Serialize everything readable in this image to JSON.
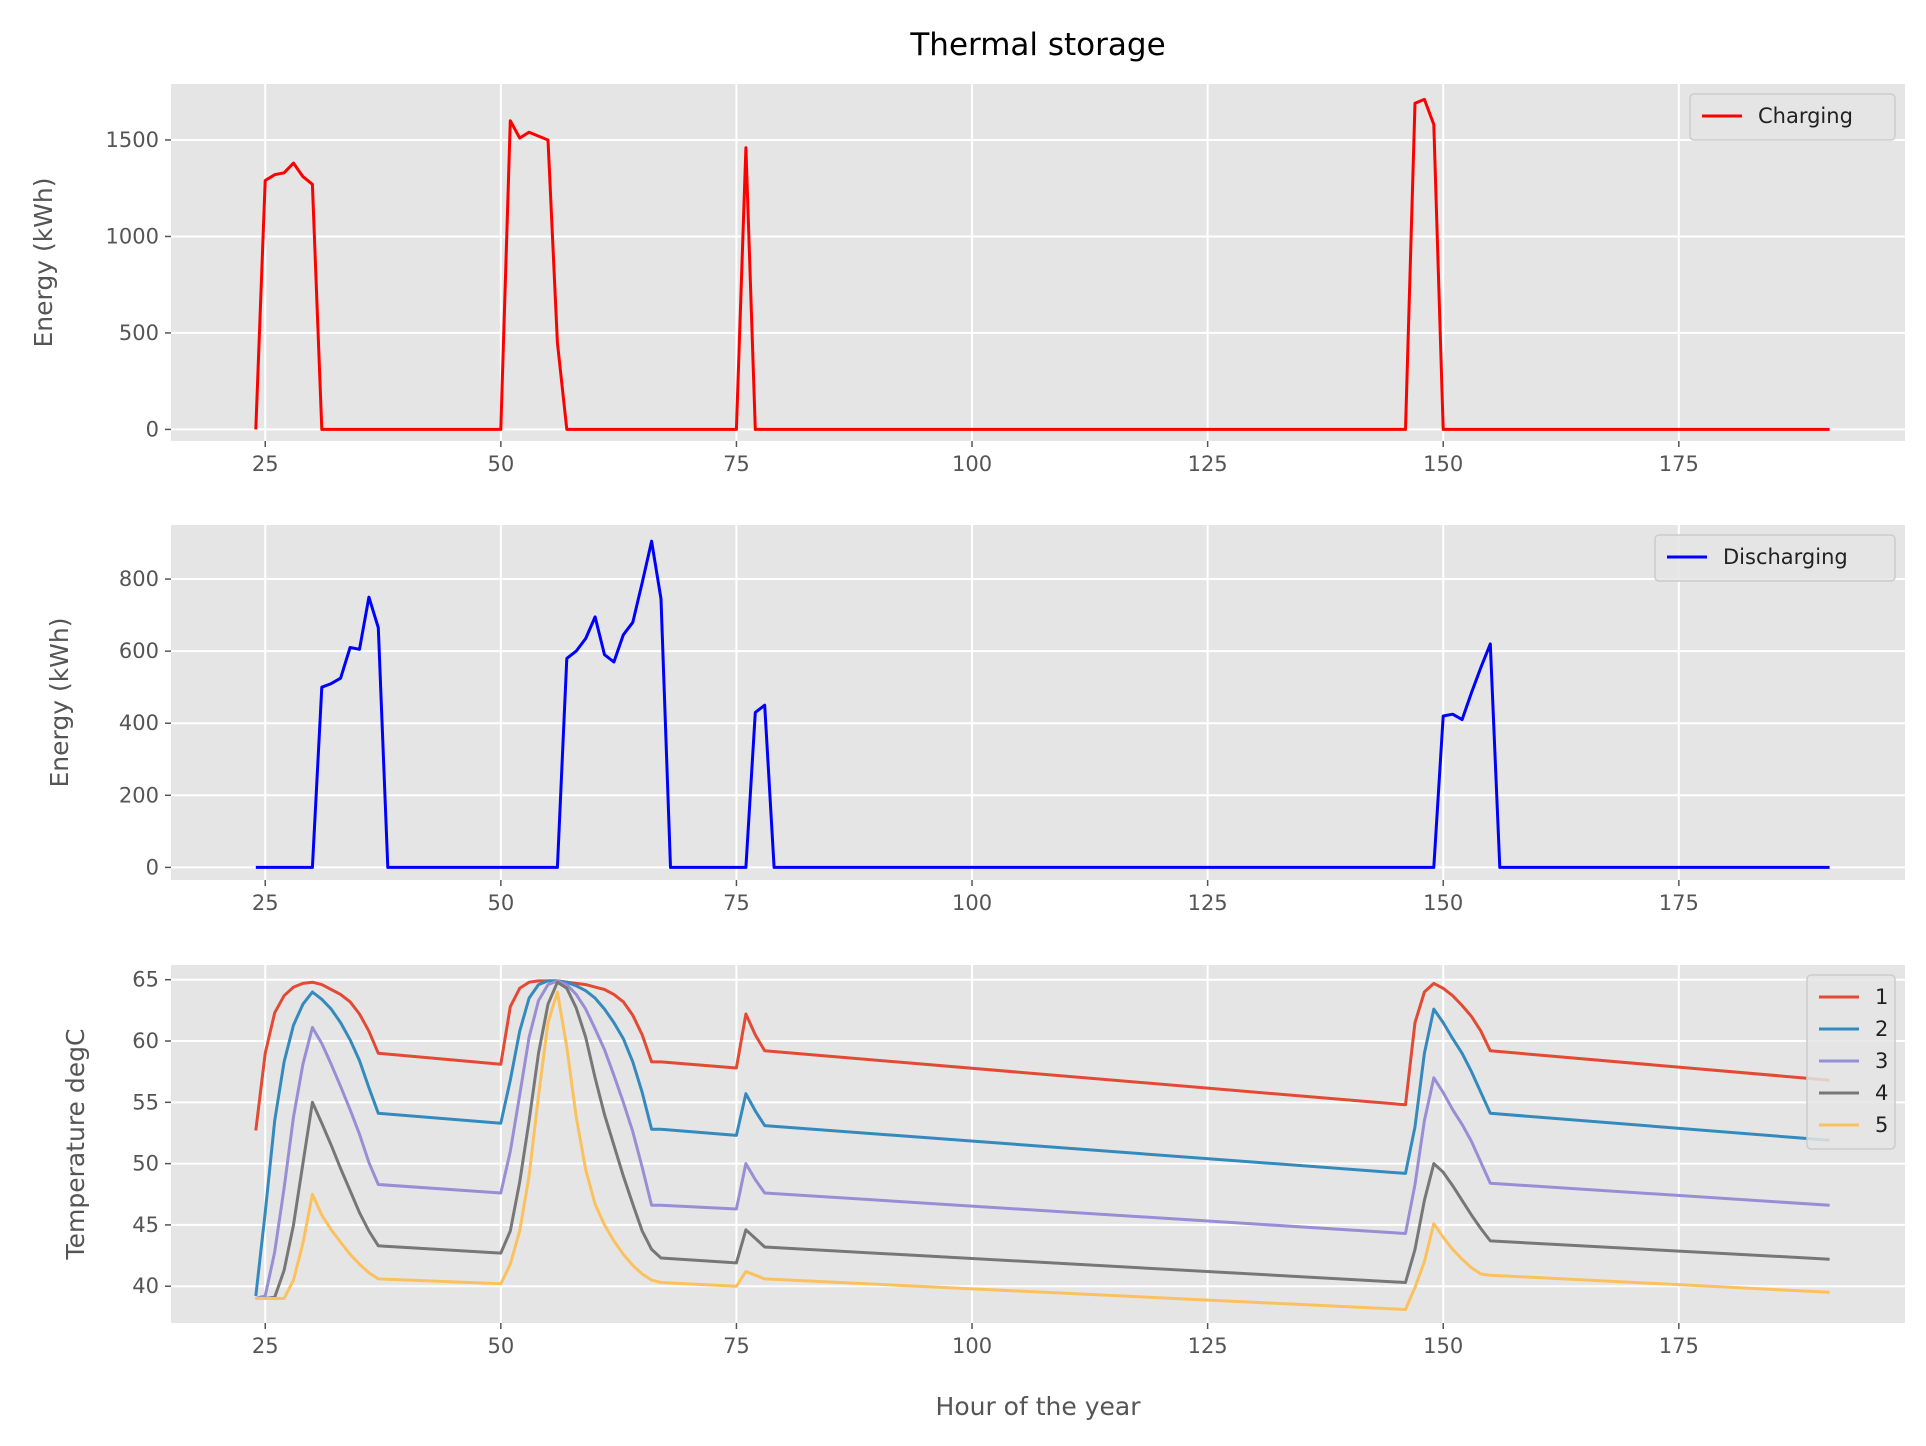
{
  "figure": {
    "title": "Thermal storage",
    "xlabel": "Hour of the year"
  },
  "chart_data": [
    {
      "type": "line",
      "ylabel": "Energy (kWh)",
      "xlim": [
        15,
        199
      ],
      "ylim": [
        -60,
        1790
      ],
      "xticks": [
        25,
        50,
        75,
        100,
        125,
        150,
        175
      ],
      "yticks": [
        0,
        500,
        1000,
        1500
      ],
      "grid": true,
      "legend": "top-right",
      "series": [
        {
          "name": "Charging",
          "color": "#ff0000",
          "x": [
            24,
            25,
            26,
            27,
            28,
            29,
            30,
            31,
            50,
            51,
            52,
            53,
            54,
            55,
            56,
            57,
            75,
            76,
            77,
            146,
            147,
            148,
            149,
            150,
            191
          ],
          "y": [
            0,
            1290,
            1320,
            1330,
            1380,
            1310,
            1270,
            0,
            0,
            1600,
            1510,
            1540,
            1520,
            1500,
            450,
            0,
            0,
            1460,
            0,
            0,
            1690,
            1710,
            1580,
            0,
            0
          ]
        }
      ]
    },
    {
      "type": "line",
      "ylabel": "Energy (kWh)",
      "xlim": [
        15,
        199
      ],
      "ylim": [
        -35,
        950
      ],
      "xticks": [
        25,
        50,
        75,
        100,
        125,
        150,
        175
      ],
      "yticks": [
        0,
        200,
        400,
        600,
        800
      ],
      "grid": true,
      "legend": "top-right",
      "series": [
        {
          "name": "Discharging",
          "color": "#0000ff",
          "x": [
            24,
            30,
            31,
            32,
            33,
            34,
            35,
            36,
            37,
            38,
            56,
            57,
            58,
            59,
            60,
            61,
            62,
            63,
            64,
            65,
            66,
            67,
            68,
            76,
            77,
            78,
            79,
            149,
            150,
            151,
            152,
            153,
            154,
            155,
            156,
            191
          ],
          "y": [
            0,
            0,
            500,
            510,
            525,
            610,
            605,
            750,
            665,
            0,
            0,
            580,
            600,
            635,
            695,
            590,
            570,
            645,
            680,
            790,
            905,
            745,
            0,
            0,
            430,
            450,
            0,
            0,
            420,
            425,
            410,
            485,
            555,
            620,
            0,
            0
          ]
        }
      ]
    },
    {
      "type": "line",
      "ylabel": "Temperature degC",
      "xlim": [
        15,
        199
      ],
      "ylim": [
        37,
        66.2
      ],
      "xticks": [
        25,
        50,
        75,
        100,
        125,
        150,
        175
      ],
      "yticks": [
        40,
        45,
        50,
        55,
        60,
        65
      ],
      "grid": true,
      "legend": "top-right",
      "series": [
        {
          "name": "1",
          "color": "#e24a33",
          "x": [
            24,
            25,
            26,
            27,
            28,
            29,
            30,
            31,
            32,
            33,
            34,
            35,
            36,
            37,
            50,
            51,
            52,
            53,
            54,
            55,
            56,
            57,
            58,
            59,
            60,
            61,
            62,
            63,
            64,
            65,
            66,
            67,
            75,
            76,
            77,
            78,
            146,
            147,
            148,
            149,
            150,
            151,
            152,
            153,
            154,
            155,
            191
          ],
          "y": [
            52.7,
            59.0,
            62.3,
            63.7,
            64.4,
            64.7,
            64.8,
            64.6,
            64.2,
            63.8,
            63.2,
            62.2,
            60.8,
            59.0,
            58.1,
            62.8,
            64.3,
            64.8,
            64.9,
            64.9,
            64.9,
            64.8,
            64.7,
            64.6,
            64.4,
            64.2,
            63.8,
            63.2,
            62.1,
            60.5,
            58.3,
            58.3,
            57.8,
            62.2,
            60.5,
            59.2,
            54.8,
            61.5,
            64.0,
            64.7,
            64.3,
            63.7,
            62.9,
            62.0,
            60.8,
            59.2,
            56.8
          ]
        },
        {
          "name": "2",
          "color": "#348abd",
          "x": [
            24,
            25,
            26,
            27,
            28,
            29,
            30,
            31,
            32,
            33,
            34,
            35,
            36,
            37,
            50,
            51,
            52,
            53,
            54,
            55,
            56,
            57,
            58,
            59,
            60,
            61,
            62,
            63,
            64,
            65,
            66,
            67,
            75,
            76,
            77,
            78,
            146,
            147,
            148,
            149,
            150,
            151,
            152,
            153,
            154,
            155,
            191
          ],
          "y": [
            39.2,
            46.0,
            53.5,
            58.3,
            61.3,
            63.0,
            64.0,
            63.4,
            62.6,
            61.5,
            60.1,
            58.4,
            56.2,
            54.1,
            53.3,
            56.8,
            60.8,
            63.5,
            64.6,
            64.9,
            64.9,
            64.8,
            64.5,
            64.1,
            63.5,
            62.6,
            61.5,
            60.2,
            58.3,
            55.8,
            52.8,
            52.8,
            52.3,
            55.7,
            54.3,
            53.1,
            49.2,
            53.0,
            59.0,
            62.6,
            61.5,
            60.2,
            59.0,
            57.5,
            55.8,
            54.1,
            51.9
          ]
        },
        {
          "name": "3",
          "color": "#988ed5",
          "x": [
            24,
            25,
            26,
            27,
            28,
            29,
            30,
            31,
            32,
            33,
            34,
            35,
            36,
            37,
            50,
            51,
            52,
            53,
            54,
            55,
            56,
            57,
            58,
            59,
            60,
            61,
            62,
            63,
            64,
            65,
            66,
            67,
            75,
            76,
            77,
            78,
            146,
            147,
            148,
            149,
            150,
            151,
            152,
            153,
            154,
            155,
            191
          ],
          "y": [
            39.0,
            39.2,
            42.8,
            48.0,
            53.8,
            58.1,
            61.1,
            59.8,
            58.1,
            56.3,
            54.4,
            52.4,
            50.1,
            48.3,
            47.6,
            51.0,
            55.6,
            60.3,
            63.3,
            64.6,
            64.9,
            64.6,
            63.8,
            62.6,
            61.0,
            59.3,
            57.2,
            55.0,
            52.6,
            49.7,
            46.6,
            46.6,
            46.3,
            50.0,
            48.7,
            47.6,
            44.3,
            48.3,
            53.5,
            57.0,
            55.8,
            54.4,
            53.2,
            51.8,
            50.1,
            48.4,
            46.6
          ]
        },
        {
          "name": "4",
          "color": "#777777",
          "x": [
            24,
            25,
            26,
            27,
            28,
            29,
            30,
            31,
            32,
            33,
            34,
            35,
            36,
            37,
            50,
            51,
            52,
            53,
            54,
            55,
            56,
            57,
            58,
            59,
            60,
            61,
            62,
            63,
            64,
            65,
            66,
            67,
            75,
            76,
            77,
            78,
            146,
            147,
            148,
            149,
            150,
            151,
            152,
            153,
            154,
            155,
            191
          ],
          "y": [
            39.0,
            39.0,
            39.1,
            41.3,
            45.0,
            50.0,
            55.0,
            53.3,
            51.5,
            49.6,
            47.8,
            46.0,
            44.5,
            43.3,
            42.7,
            44.5,
            48.5,
            53.5,
            59.0,
            63.0,
            64.8,
            64.3,
            62.7,
            60.3,
            57.0,
            54.0,
            51.5,
            49.0,
            46.7,
            44.5,
            43.0,
            42.3,
            41.9,
            44.6,
            43.9,
            43.2,
            40.3,
            43.0,
            47.0,
            50.0,
            49.3,
            48.2,
            47.0,
            45.8,
            44.7,
            43.7,
            42.2
          ]
        },
        {
          "name": "5",
          "color": "#fbc15e",
          "x": [
            24,
            25,
            26,
            27,
            28,
            29,
            30,
            31,
            32,
            33,
            34,
            35,
            36,
            37,
            50,
            51,
            52,
            53,
            54,
            55,
            56,
            57,
            58,
            59,
            60,
            61,
            62,
            63,
            64,
            65,
            66,
            67,
            75,
            76,
            77,
            78,
            146,
            147,
            148,
            149,
            150,
            151,
            152,
            153,
            154,
            155,
            191
          ],
          "y": [
            39.0,
            39.0,
            39.0,
            39.0,
            40.5,
            43.5,
            47.5,
            45.8,
            44.6,
            43.6,
            42.6,
            41.8,
            41.1,
            40.6,
            40.2,
            41.8,
            44.5,
            49.0,
            55.5,
            61.5,
            64.0,
            59.5,
            53.8,
            49.5,
            46.7,
            45.0,
            43.7,
            42.6,
            41.7,
            41.0,
            40.5,
            40.3,
            40.0,
            41.2,
            40.9,
            40.6,
            38.1,
            39.9,
            42.0,
            45.1,
            44.0,
            43.0,
            42.2,
            41.5,
            41.0,
            40.9,
            39.5
          ]
        }
      ]
    }
  ]
}
